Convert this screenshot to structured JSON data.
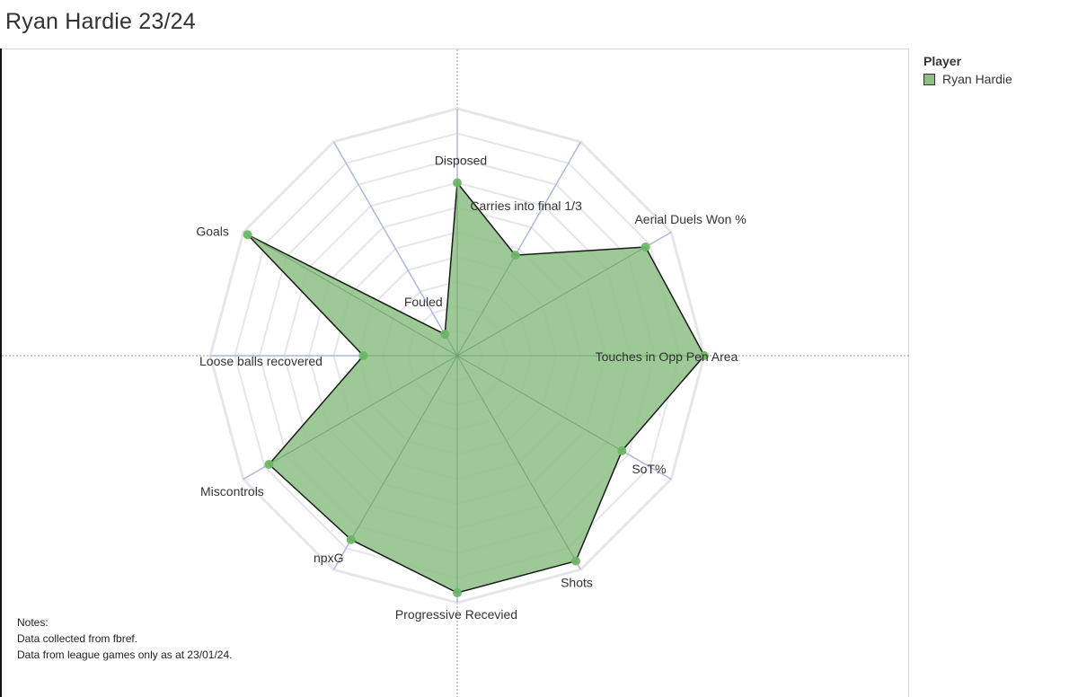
{
  "title": "Ryan Hardie 23/24",
  "legend": {
    "title": "Player",
    "items": [
      {
        "label": "Ryan Hardie",
        "color": "#8cc084"
      }
    ]
  },
  "notes": {
    "heading": "Notes:",
    "lines": [
      "Data collected from fbref.",
      "Data from league games only as at 23/01/24."
    ]
  },
  "colors": {
    "fill": "#8cc084",
    "outline": "#1a1a1a",
    "marker": "#6db667",
    "grid": "#e6e6ea",
    "axis": "#aab8e0",
    "crosshair": "#999999",
    "label": "#333333"
  },
  "chart_data": {
    "type": "radar",
    "title": "Ryan Hardie 23/24",
    "range": [
      0,
      1
    ],
    "grid_rings": 10,
    "series": [
      {
        "name": "Ryan Hardie",
        "color": "#8cc084",
        "values": [
          0.7,
          0.47,
          0.88,
          1.0,
          0.77,
          0.96,
          0.96,
          0.86,
          0.88,
          0.38,
          0.98,
          0.1
        ]
      }
    ],
    "axes": [
      "Disposed",
      "Carries into final 1/3",
      "Aerial Duels Won %",
      "Touches in Opp Pen Area",
      "SoT%",
      "Shots",
      "Progressive Recevied",
      "npxG",
      "Miscontrols",
      "Loose balls recovered",
      "Goals",
      "Fouled"
    ]
  }
}
